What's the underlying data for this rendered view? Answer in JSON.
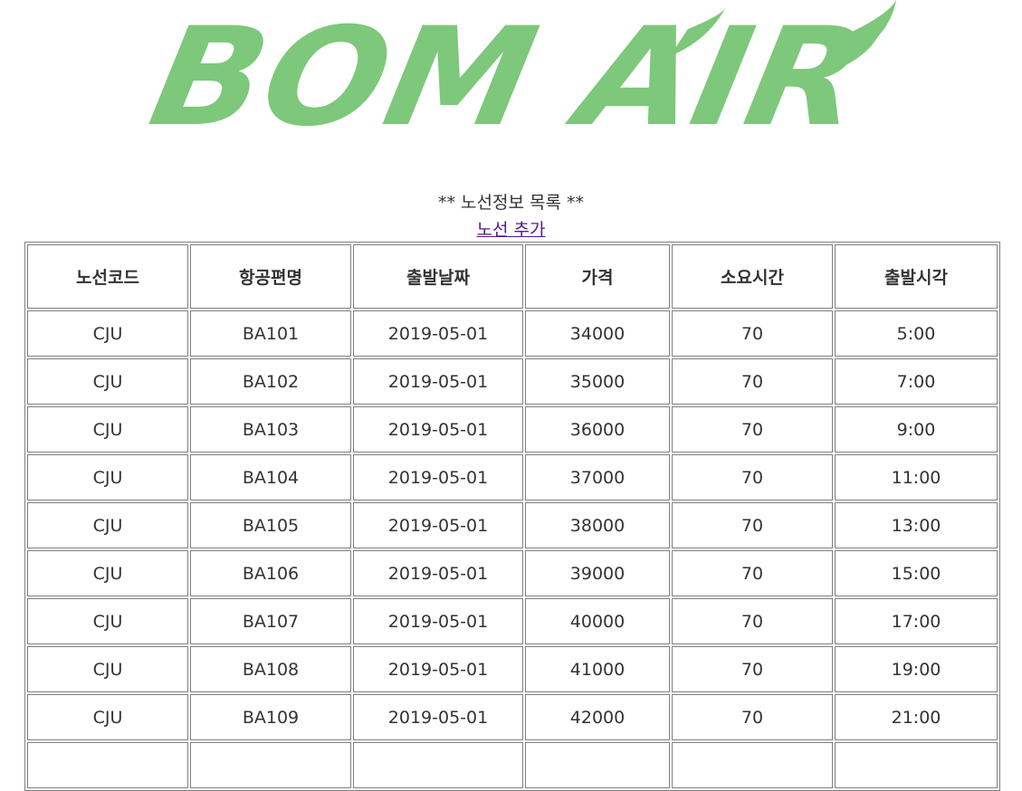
{
  "logo": {
    "text": "BOM AIR"
  },
  "heading": "** 노선정보 목록 **",
  "link": "노선 추가",
  "table": {
    "headers": [
      "노선코드",
      "항공편명",
      "출발날짜",
      "가격",
      "소요시간",
      "출발시각"
    ],
    "rows": [
      [
        "CJU",
        "BA101",
        "2019-05-01",
        "34000",
        "70",
        "5:00"
      ],
      [
        "CJU",
        "BA102",
        "2019-05-01",
        "35000",
        "70",
        "7:00"
      ],
      [
        "CJU",
        "BA103",
        "2019-05-01",
        "36000",
        "70",
        "9:00"
      ],
      [
        "CJU",
        "BA104",
        "2019-05-01",
        "37000",
        "70",
        "11:00"
      ],
      [
        "CJU",
        "BA105",
        "2019-05-01",
        "38000",
        "70",
        "13:00"
      ],
      [
        "CJU",
        "BA106",
        "2019-05-01",
        "39000",
        "70",
        "15:00"
      ],
      [
        "CJU",
        "BA107",
        "2019-05-01",
        "40000",
        "70",
        "17:00"
      ],
      [
        "CJU",
        "BA108",
        "2019-05-01",
        "41000",
        "70",
        "19:00"
      ],
      [
        "CJU",
        "BA109",
        "2019-05-01",
        "42000",
        "70",
        "21:00"
      ]
    ]
  }
}
